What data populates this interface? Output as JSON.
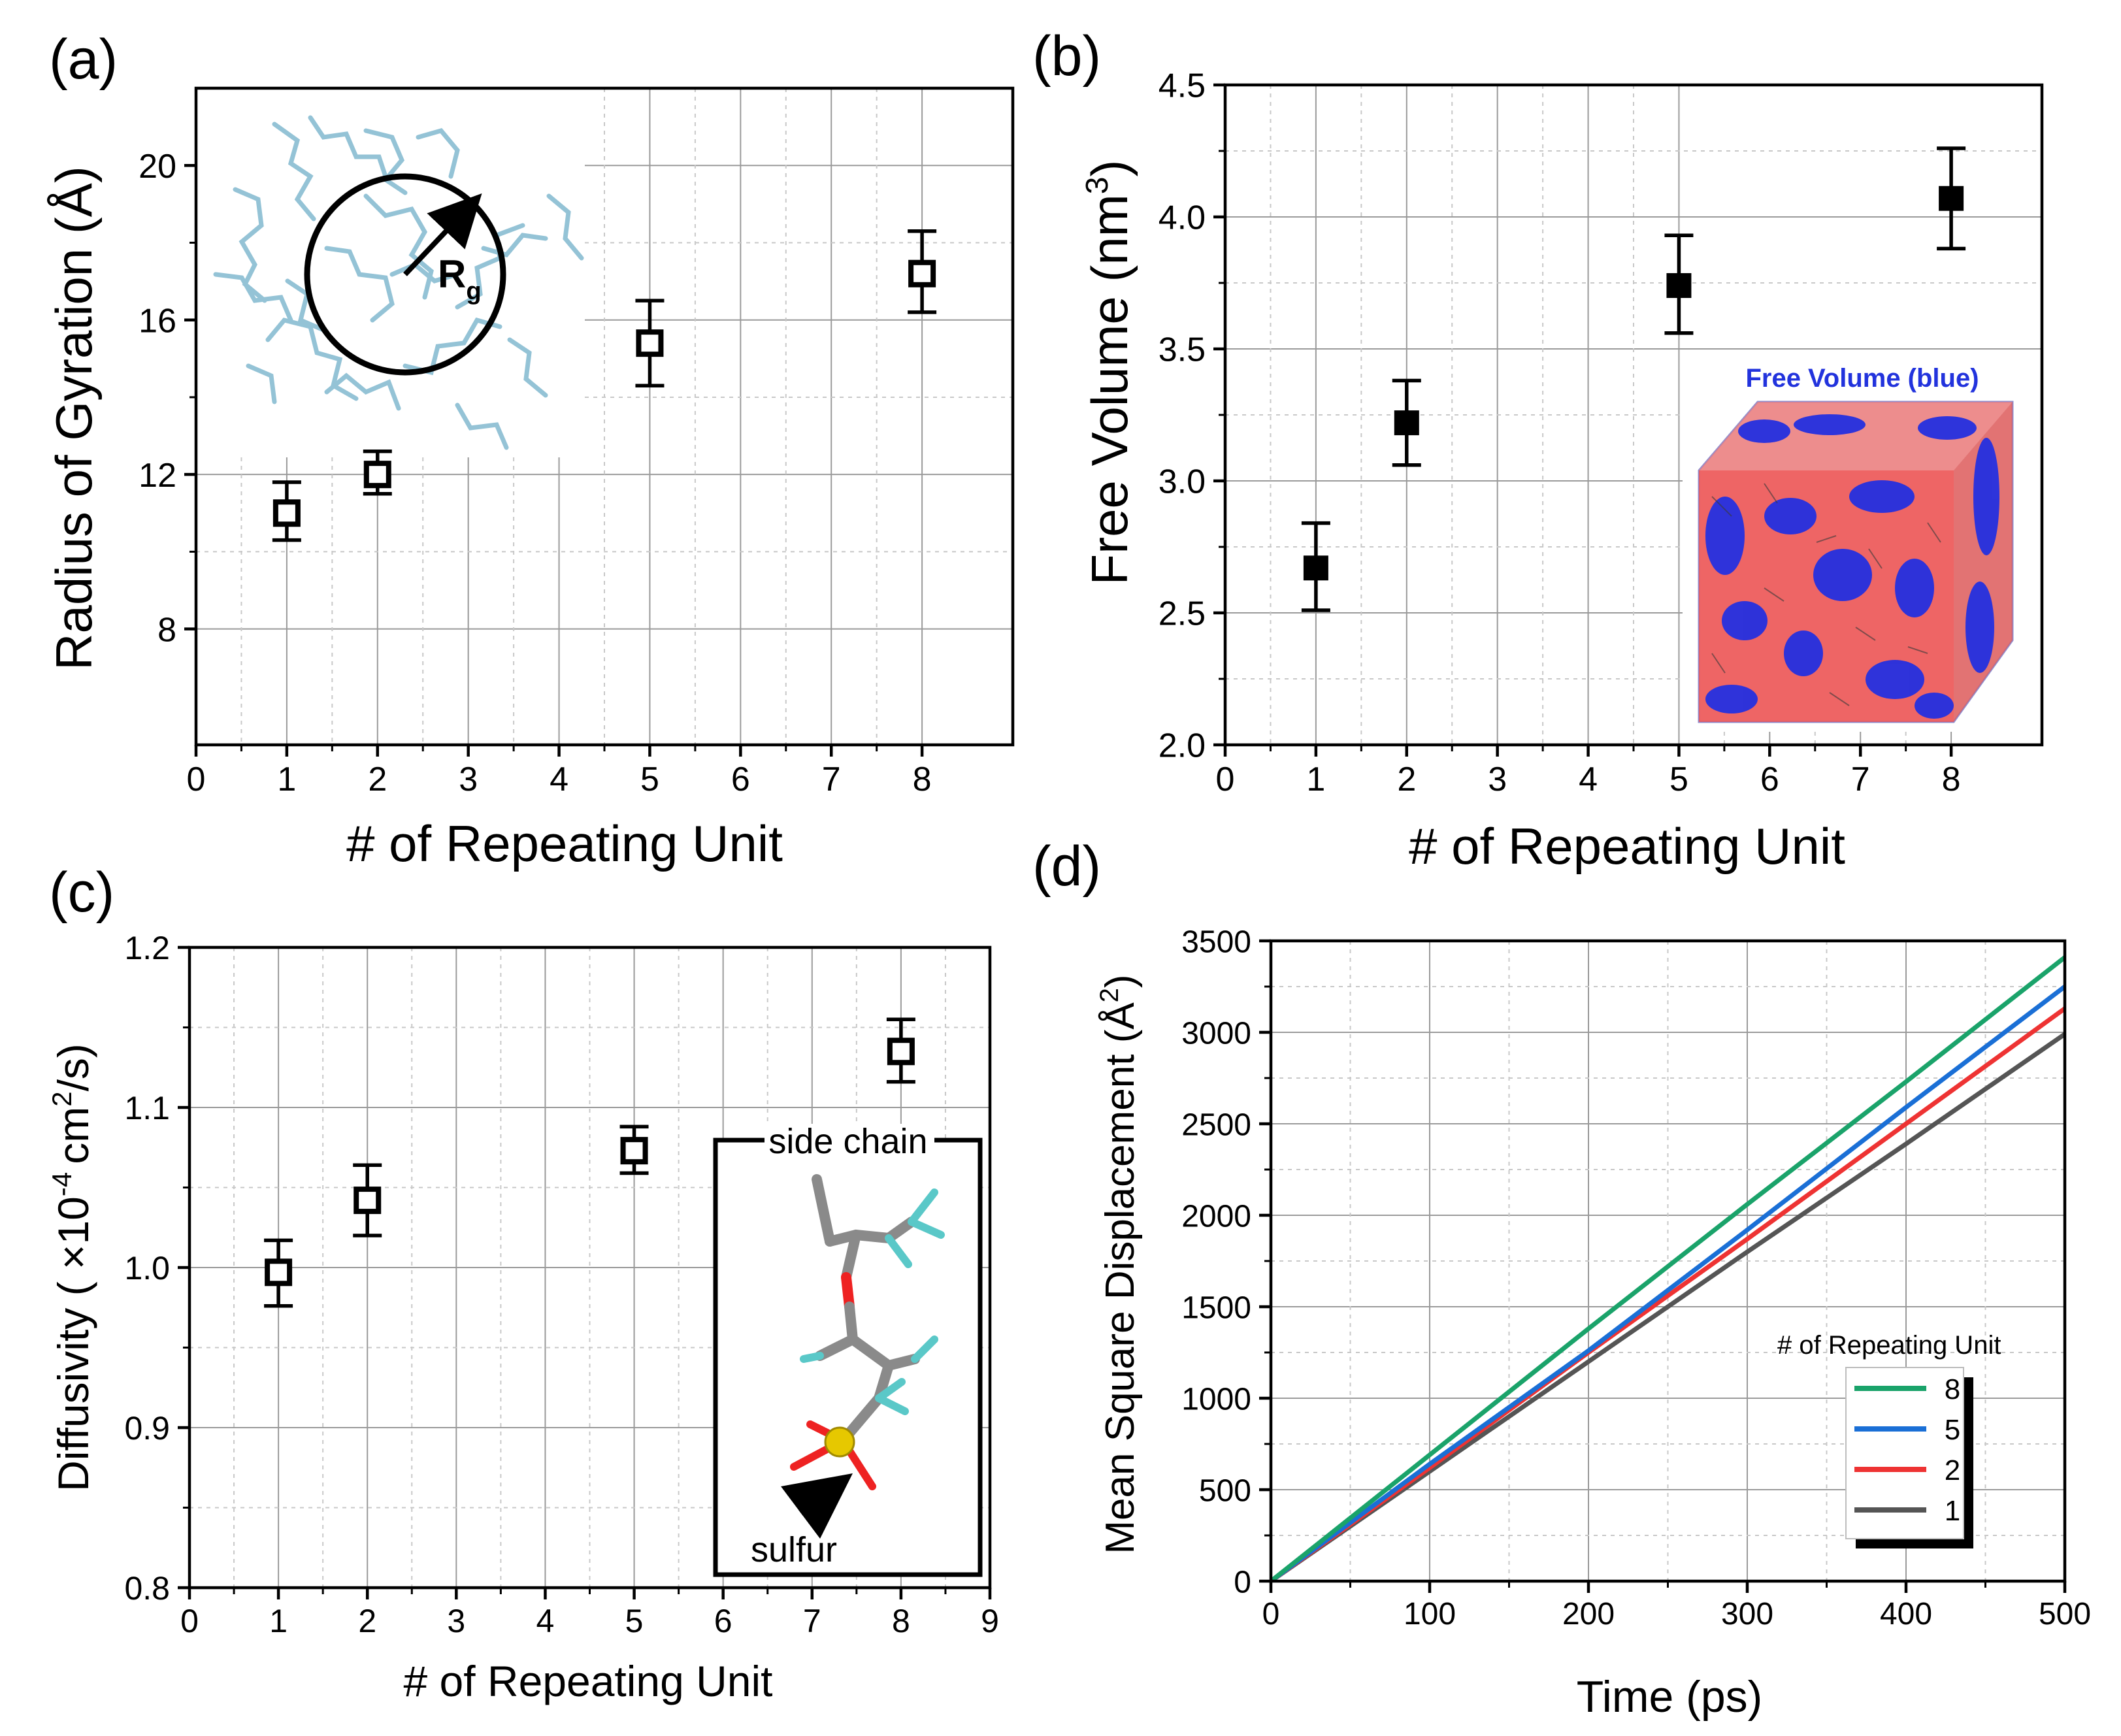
{
  "chart_data": [
    {
      "panel": "(a)",
      "type": "scatter",
      "xlabel": "# of Repeating Unit",
      "ylabel": "Radius of Gyration (Å)",
      "xlim": [
        0,
        9
      ],
      "ylim": [
        5,
        22
      ],
      "xticks": [
        0,
        1,
        2,
        3,
        4,
        5,
        6,
        7,
        8
      ],
      "yticks": [
        8,
        12,
        16,
        20
      ],
      "x": [
        1,
        2,
        5,
        8
      ],
      "y": [
        11.0,
        12.0,
        15.4,
        17.2
      ],
      "yerr_low": [
        10.3,
        11.5,
        14.3,
        16.2
      ],
      "yerr_high": [
        11.8,
        12.6,
        16.5,
        18.3
      ],
      "marker": "open-square",
      "inset": {
        "type": "molecule-image",
        "label": "R",
        "label_sub": "g"
      }
    },
    {
      "panel": "(b)",
      "type": "scatter",
      "xlabel": "# of Repeating Unit",
      "ylabel": "Free Volume (nm³)",
      "ylabel_main": "Free Volume (nm",
      "ylabel_sup": "3",
      "ylabel_end": ")",
      "xlim": [
        0,
        9
      ],
      "ylim": [
        2.0,
        4.5
      ],
      "xticks": [
        0,
        1,
        2,
        3,
        4,
        5,
        6,
        7,
        8
      ],
      "yticks": [
        2.0,
        2.5,
        3.0,
        3.5,
        4.0,
        4.5
      ],
      "x": [
        1,
        2,
        5,
        8
      ],
      "y": [
        2.67,
        3.22,
        3.74,
        4.07
      ],
      "yerr_low": [
        2.51,
        3.06,
        3.56,
        3.88
      ],
      "yerr_high": [
        2.84,
        3.38,
        3.93,
        4.26
      ],
      "marker": "filled-square",
      "inset": {
        "type": "volume-render-image",
        "title": "Free Volume (blue)"
      }
    },
    {
      "panel": "(c)",
      "type": "scatter",
      "xlabel": "# of Repeating Unit",
      "ylabel": "Diffusivity ( ×10⁻⁴ cm²/s)",
      "ylabel_a": "Diffusivity ( ×10",
      "ylabel_sup1": "-4",
      "ylabel_b": "cm",
      "ylabel_sup2": "2",
      "ylabel_c": "/s)",
      "xlim": [
        0,
        9
      ],
      "ylim": [
        0.8,
        1.2
      ],
      "xticks": [
        0,
        1,
        2,
        3,
        4,
        5,
        6,
        7,
        8,
        9
      ],
      "yticks": [
        0.8,
        0.9,
        1.0,
        1.1,
        1.2
      ],
      "x": [
        1,
        2,
        5,
        8
      ],
      "y": [
        0.997,
        1.042,
        1.073,
        1.135
      ],
      "yerr_low": [
        0.976,
        1.02,
        1.059,
        1.116
      ],
      "yerr_high": [
        1.017,
        1.064,
        1.088,
        1.155
      ],
      "marker": "open-square",
      "inset": {
        "type": "molecule-image",
        "label_top": "side chain",
        "label_bottom": "sulfur"
      }
    },
    {
      "panel": "(d)",
      "type": "line",
      "xlabel": "Time (ps)",
      "ylabel": "Mean Square Displacement (Å²)",
      "ylabel_main": "Mean Square Displacement (Å",
      "ylabel_sup": "2",
      "ylabel_end": ")",
      "xlim": [
        0,
        500
      ],
      "ylim": [
        0,
        3500
      ],
      "xticks": [
        0,
        100,
        200,
        300,
        400,
        500
      ],
      "yticks": [
        0,
        500,
        1000,
        1500,
        2000,
        2500,
        3000,
        3500
      ],
      "legend_title": "# of Repeating Unit",
      "legend_location": "lower-right",
      "series": [
        {
          "name": "8",
          "color": "#1aa36a",
          "x": [
            0,
            100,
            200,
            300,
            400,
            500
          ],
          "y": [
            0,
            690,
            1380,
            2060,
            2730,
            3410
          ]
        },
        {
          "name": "5",
          "color": "#1a6fd6",
          "x": [
            0,
            100,
            200,
            300,
            400,
            500
          ],
          "y": [
            0,
            640,
            1260,
            1920,
            2590,
            3250
          ]
        },
        {
          "name": "2",
          "color": "#ee3333",
          "x": [
            0,
            100,
            200,
            300,
            400,
            500
          ],
          "y": [
            0,
            620,
            1250,
            1870,
            2500,
            3130
          ]
        },
        {
          "name": "1",
          "color": "#555555",
          "x": [
            0,
            100,
            200,
            300,
            400,
            500
          ],
          "y": [
            0,
            600,
            1200,
            1800,
            2390,
            2990
          ]
        }
      ]
    }
  ]
}
